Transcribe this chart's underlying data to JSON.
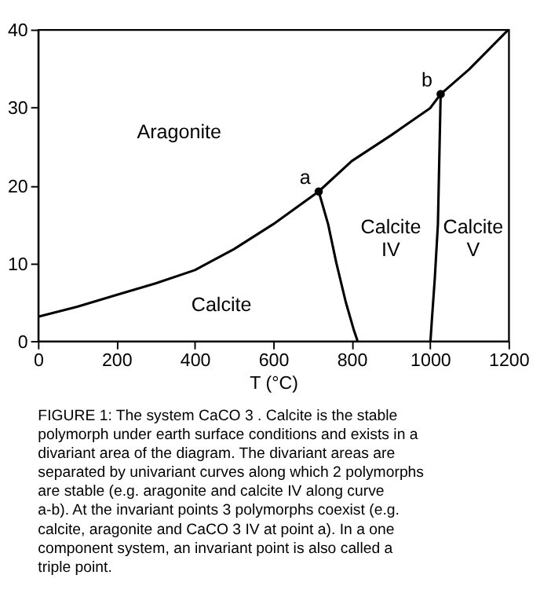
{
  "chart_data": {
    "type": "line",
    "xlabel": "T (°C)",
    "xlim": [
      0,
      1200
    ],
    "xticks": [
      0,
      200,
      400,
      600,
      800,
      1000,
      1200
    ],
    "ylim": [
      0,
      40
    ],
    "yticks": [
      0,
      10,
      20,
      30,
      40
    ],
    "grid": false,
    "line_style": "solid",
    "marker": "none",
    "series": [
      {
        "color": "#000000",
        "x": [
          0,
          100,
          200,
          300,
          400,
          500,
          600,
          716,
          800,
          900,
          1000,
          1027,
          1100,
          1200
        ],
        "values": [
          3.1,
          4.4,
          5.9,
          7.4,
          9.1,
          11.8,
          15.0,
          19.2,
          23.1,
          26.4,
          29.9,
          31.7,
          34.9,
          40.0
        ]
      },
      {
        "color": "#000000",
        "x": [
          716,
          740,
          761,
          785,
          805,
          815
        ],
        "values": [
          19.2,
          15.0,
          10.0,
          5.0,
          1.5,
          0
        ]
      },
      {
        "color": "#000000",
        "x": [
          1027,
          1020,
          1012,
          1005,
          1001
        ],
        "values": [
          31.7,
          15.0,
          8.0,
          3.0,
          0
        ]
      },
      {
        "type": "scatter",
        "marker": "circle",
        "color": "#000000",
        "x": [
          716,
          1027
        ],
        "values": [
          19.2,
          31.7
        ]
      }
    ],
    "annotations": [
      {
        "text": "a",
        "x": 716,
        "y": 19.2
      },
      {
        "text": "b",
        "x": 1027,
        "y": 31.7
      },
      "Aragonite",
      "Calcite",
      "Calcite IV",
      "Calcite V",
      "FIGURE 1: The system CaCO 3 . Calcite is the stable polymorph under earth surface conditions and exists in a divariant area of the diagram. The divariant areas are separated by univariant curves along which 2 polymorphs are stable (e.g. aragonite and calcite IV along curve a-b). At the invariant points 3 polymorphs coexist (e.g. calcite, aragonite and CaCO 3 IV at point a). In a one component system, an invariant point is also called a triple point."
    ]
  }
}
